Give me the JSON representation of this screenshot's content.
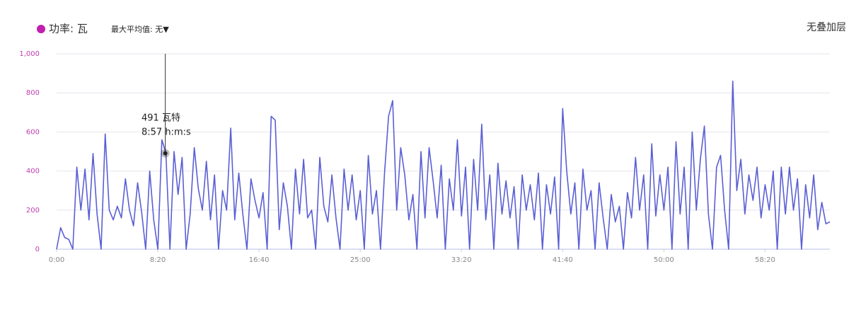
{
  "chart_data": {
    "type": "line",
    "legend_text": "功率: 瓦",
    "dropdown": "最大平均值: 无▼",
    "overlay_button": "无叠加层",
    "x": [
      0,
      20,
      40,
      60,
      80,
      100,
      120,
      140,
      160,
      180,
      200,
      220,
      240,
      260,
      280,
      300,
      320,
      340,
      360,
      380,
      400,
      420,
      440,
      460,
      480,
      500,
      520,
      540,
      560,
      580,
      600,
      620,
      640,
      660,
      680,
      700,
      720,
      740,
      760,
      780,
      800,
      820,
      840,
      860,
      880,
      900,
      920,
      940,
      960,
      980,
      1000,
      1020,
      1040,
      1060,
      1080,
      1100,
      1120,
      1140,
      1160,
      1180,
      1200,
      1220,
      1240,
      1260,
      1280,
      1300,
      1320,
      1340,
      1360,
      1380,
      1400,
      1420,
      1440,
      1460,
      1480,
      1500,
      1520,
      1540,
      1560,
      1580,
      1600,
      1620,
      1640,
      1660,
      1680,
      1700,
      1720,
      1740,
      1760,
      1780,
      1800,
      1820,
      1840,
      1860,
      1880,
      1900,
      1920,
      1940,
      1960,
      1980,
      2000,
      2020,
      2040,
      2060,
      2080,
      2100,
      2120,
      2140,
      2160,
      2180,
      2200,
      2220,
      2240,
      2260,
      2280,
      2300,
      2320,
      2340,
      2360,
      2380,
      2400,
      2420,
      2440,
      2460,
      2480,
      2500,
      2520,
      2540,
      2560,
      2580,
      2600,
      2620,
      2640,
      2660,
      2680,
      2700,
      2720,
      2740,
      2760,
      2780,
      2800,
      2820,
      2840,
      2860,
      2880,
      2900,
      2920,
      2940,
      2960,
      2980,
      3000,
      3020,
      3040,
      3060,
      3080,
      3100,
      3120,
      3140,
      3160,
      3180,
      3200,
      3220,
      3240,
      3260,
      3280,
      3300,
      3320,
      3340,
      3360,
      3380,
      3400,
      3420,
      3440,
      3460,
      3480,
      3500,
      3520,
      3540,
      3560,
      3580,
      3600,
      3620,
      3640,
      3660,
      3680,
      3700,
      3720,
      3740,
      3760,
      3780,
      3800,
      3820
    ],
    "series": [
      {
        "name": "功率: 瓦",
        "color": "#5a5fd4",
        "marker_color": "#c020b0",
        "values": [
          0,
          110,
          60,
          50,
          0,
          420,
          200,
          410,
          150,
          490,
          180,
          0,
          590,
          200,
          150,
          220,
          160,
          360,
          200,
          120,
          340,
          190,
          0,
          400,
          150,
          0,
          560,
          491,
          0,
          500,
          280,
          470,
          0,
          180,
          520,
          310,
          200,
          450,
          150,
          380,
          0,
          300,
          200,
          620,
          150,
          390,
          180,
          0,
          360,
          250,
          160,
          290,
          0,
          680,
          660,
          100,
          340,
          220,
          0,
          410,
          180,
          460,
          160,
          200,
          0,
          470,
          220,
          140,
          380,
          160,
          0,
          410,
          200,
          380,
          150,
          300,
          0,
          480,
          180,
          300,
          0,
          390,
          680,
          760,
          200,
          520,
          380,
          150,
          280,
          0,
          500,
          160,
          520,
          350,
          160,
          430,
          0,
          360,
          200,
          560,
          170,
          420,
          0,
          460,
          200,
          640,
          150,
          380,
          0,
          440,
          180,
          350,
          160,
          320,
          0,
          380,
          200,
          330,
          150,
          390,
          0,
          330,
          180,
          370,
          0,
          720,
          400,
          180,
          340,
          0,
          410,
          200,
          300,
          0,
          340,
          160,
          0,
          280,
          140,
          220,
          0,
          290,
          160,
          470,
          200,
          380,
          0,
          540,
          170,
          380,
          200,
          420,
          0,
          550,
          180,
          420,
          0,
          600,
          200,
          460,
          630,
          180,
          0,
          420,
          480,
          200,
          0,
          860,
          300,
          460,
          180,
          380,
          250,
          420,
          160,
          330,
          200,
          400,
          0,
          420,
          180,
          420,
          200,
          360,
          0,
          330,
          160,
          380,
          100,
          240,
          130,
          140
        ]
      }
    ],
    "xlim": [
      0,
      3820
    ],
    "xticks": [
      {
        "value": 0,
        "label": "0:00"
      },
      {
        "value": 500,
        "label": "8:20"
      },
      {
        "value": 1000,
        "label": "16:40"
      },
      {
        "value": 1500,
        "label": "25:00"
      },
      {
        "value": 2000,
        "label": "33:20"
      },
      {
        "value": 2500,
        "label": "41:40"
      },
      {
        "value": 3000,
        "label": "50:00"
      },
      {
        "value": 3500,
        "label": "58:20"
      }
    ],
    "ylim": [
      0,
      1000
    ],
    "yticks": [
      0,
      200,
      400,
      600,
      800,
      {
        "value": 1000,
        "label": "1,000"
      }
    ],
    "grid": true,
    "tooltip": {
      "x": 537,
      "value": 491,
      "value_text": "491 瓦特",
      "time_text": "8:57 h:m:s"
    }
  }
}
